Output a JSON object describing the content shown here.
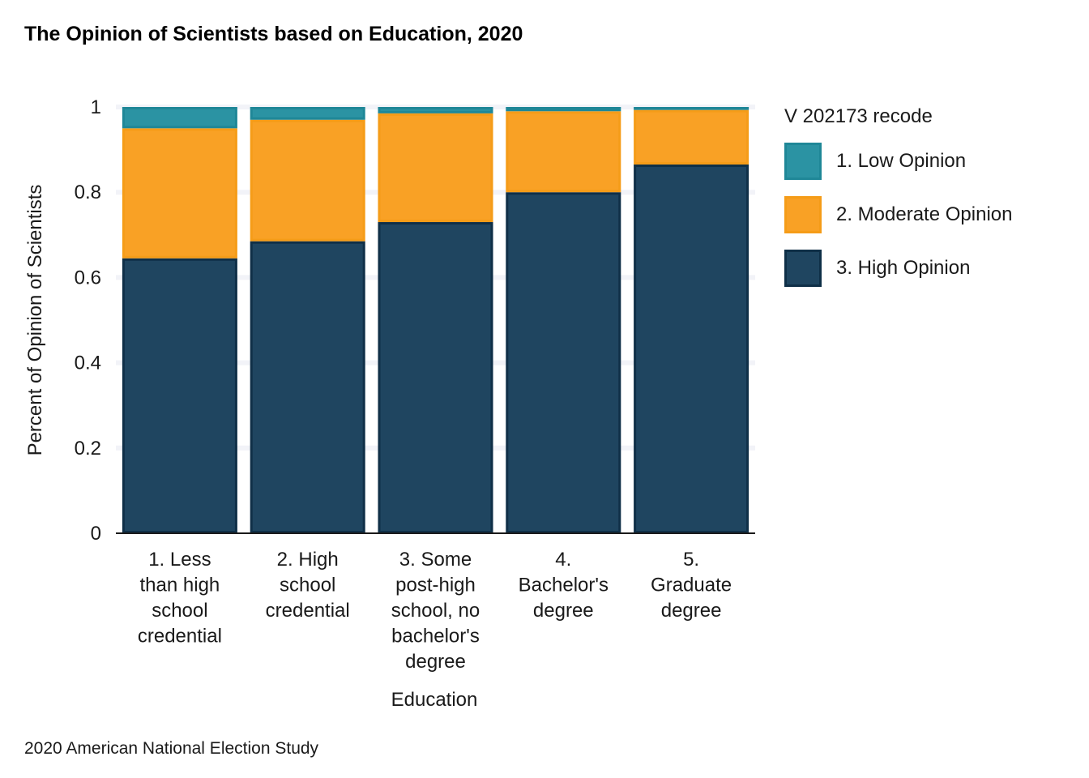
{
  "chart_data": {
    "type": "bar",
    "stacked": true,
    "title": "The Opinion of Scientists based on Education, 2020",
    "xlabel": "Education",
    "ylabel": "Percent of Opinion of Scientists",
    "caption": "2020 American National Election Study",
    "ylim": [
      0,
      1
    ],
    "yticks": [
      "0",
      "0.2",
      "0.4",
      "0.6",
      "0.8",
      "1"
    ],
    "ytick_values": [
      0,
      0.2,
      0.4,
      0.6,
      0.8,
      1
    ],
    "categories": [
      "1. Less than high school credential",
      "2. High school credential",
      "3. Some post-high school, no bachelor's degree",
      "4. Bachelor's degree",
      "5. Graduate degree"
    ],
    "category_lines": [
      [
        "1. Less",
        "than high",
        "school",
        "credential"
      ],
      [
        "2. High",
        "school",
        "credential"
      ],
      [
        "3. Some",
        "post-high",
        "school, no",
        "bachelor's",
        "degree"
      ],
      [
        "4.",
        "Bachelor's",
        "degree"
      ],
      [
        "5.",
        "Graduate",
        "degree"
      ]
    ],
    "legend_title": "V 202173 recode",
    "legend_position": "right",
    "grid": "horizontal",
    "series": [
      {
        "name": "3. High Opinion",
        "color": "#1f4560",
        "stroke": "#0f2f47",
        "values": [
          0.645,
          0.685,
          0.73,
          0.8,
          0.865
        ]
      },
      {
        "name": "2. Moderate Opinion",
        "color": "#f9a125",
        "stroke": "#f59c18",
        "values": [
          0.305,
          0.285,
          0.255,
          0.19,
          0.128
        ]
      },
      {
        "name": "1. Low Opinion",
        "color": "#2b93a3",
        "stroke": "#1f8797",
        "values": [
          0.05,
          0.03,
          0.015,
          0.01,
          0.007
        ]
      }
    ],
    "legend_order": [
      "1. Low Opinion",
      "2. Moderate Opinion",
      "3. High Opinion"
    ]
  }
}
